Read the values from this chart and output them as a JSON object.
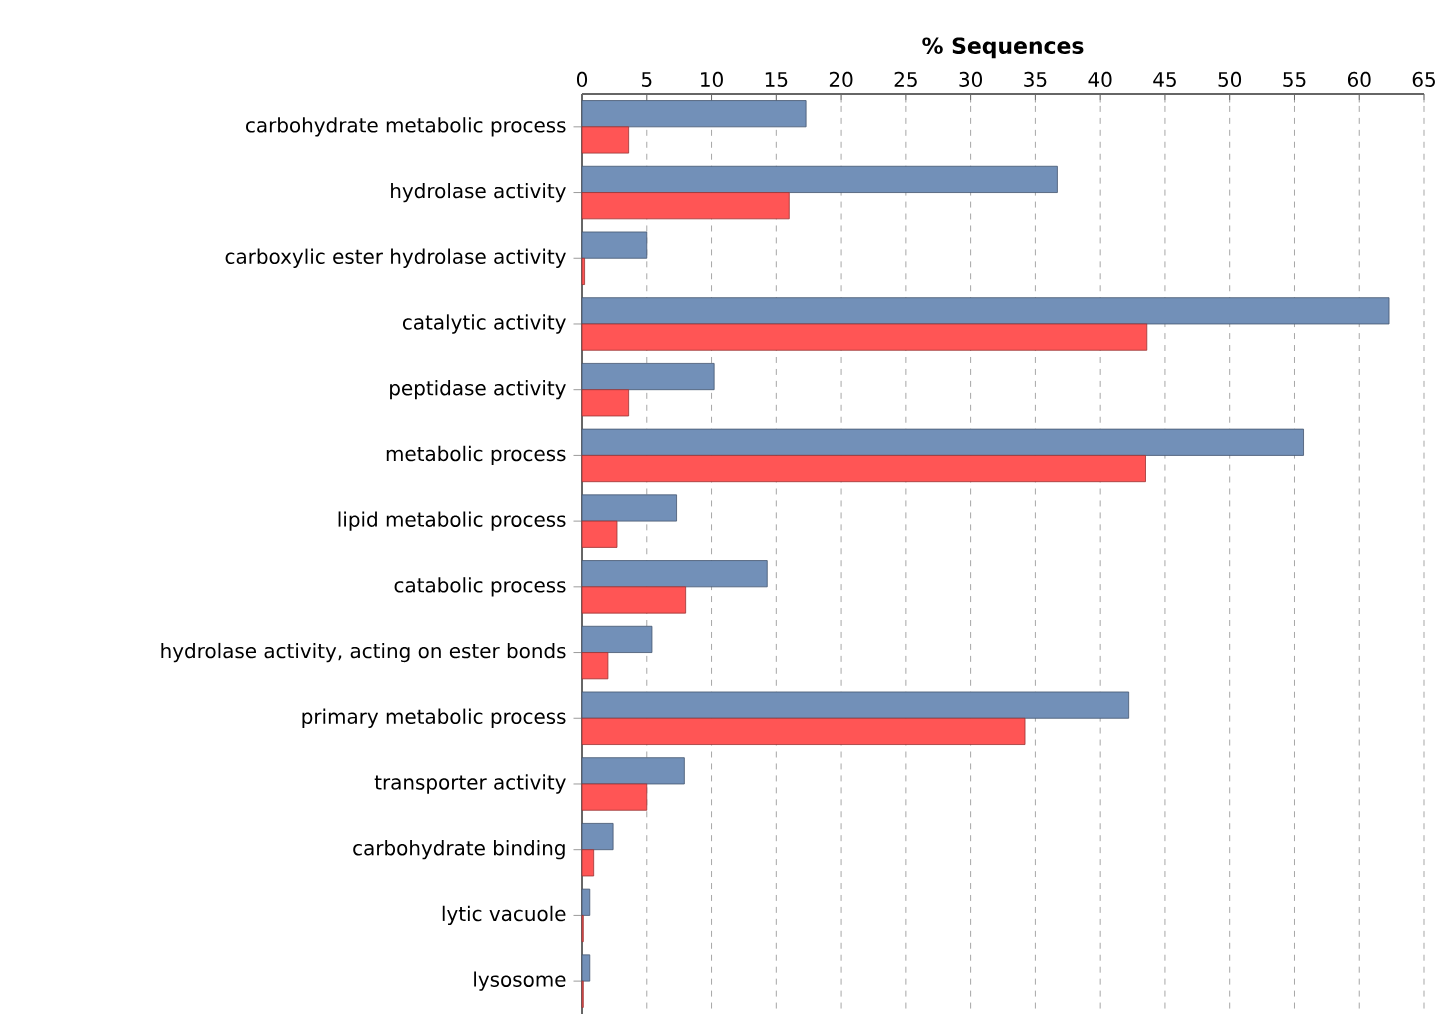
{
  "chart_data": {
    "type": "bar",
    "orientation": "horizontal",
    "xlabel": "% Sequences",
    "categories": [
      "carbohydrate metabolic process",
      "hydrolase activity",
      "carboxylic ester hydrolase activity",
      "catalytic activity",
      "peptidase activity",
      "metabolic process",
      "lipid metabolic process",
      "catabolic process",
      "hydrolase activity, acting on ester bonds",
      "primary metabolic process",
      "transporter activity",
      "carbohydrate binding",
      "lytic vacuole",
      "lysosome"
    ],
    "series": [
      {
        "color": "#7290b8",
        "values": [
          17.3,
          36.7,
          5.0,
          62.3,
          10.2,
          55.7,
          7.3,
          14.3,
          5.4,
          42.2,
          7.9,
          2.4,
          0.6,
          0.6
        ]
      },
      {
        "color": "#ff5555",
        "values": [
          3.6,
          16.0,
          0.2,
          43.6,
          3.6,
          43.5,
          2.7,
          8.0,
          2.0,
          34.2,
          5.0,
          0.9,
          0.1,
          0.1
        ]
      }
    ],
    "xlim": [
      0,
      65
    ],
    "xticks": [
      0,
      5,
      10,
      15,
      20,
      25,
      30,
      35,
      40,
      45,
      50,
      55,
      60,
      65
    ],
    "grid": "x"
  }
}
